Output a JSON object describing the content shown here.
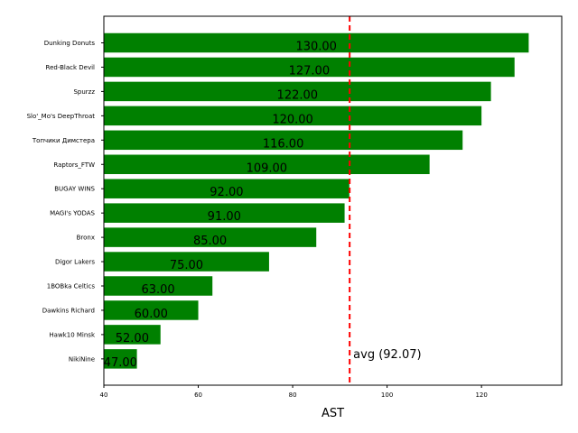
{
  "chart_data": {
    "type": "bar",
    "orientation": "horizontal",
    "title": "",
    "xlabel": "AST",
    "ylabel": "",
    "xlim": [
      40,
      137
    ],
    "xticks": [
      40,
      60,
      80,
      100,
      120
    ],
    "categories": [
      "Dunking Donuts",
      "Red-Black Devil",
      "Spurzz",
      "Slo'_Mo's DeepThroat",
      "Топчики Димстера",
      "Raptors_FTW",
      "BUGAY WINS",
      "MAGI's YODAS",
      "Bronx",
      "Digor Lakers",
      "1BOBka Celtics",
      "Dawkins Richard",
      "Hawk10 Minsk",
      "NikiNine"
    ],
    "values": [
      130,
      127,
      122,
      120,
      116,
      109,
      92,
      91,
      85,
      75,
      63,
      60,
      52,
      47
    ],
    "value_labels": [
      "130.00",
      "127.00",
      "122.00",
      "120.00",
      "116.00",
      "109.00",
      "92.00",
      "91.00",
      "85.00",
      "75.00",
      "63.00",
      "60.00",
      "52.00",
      "47.00"
    ],
    "bar_color": "#008000",
    "average": {
      "value": 92.07,
      "label": "avg (92.07)",
      "color": "#ff0000",
      "style": "dashed"
    },
    "grid": false,
    "legend": "none"
  }
}
